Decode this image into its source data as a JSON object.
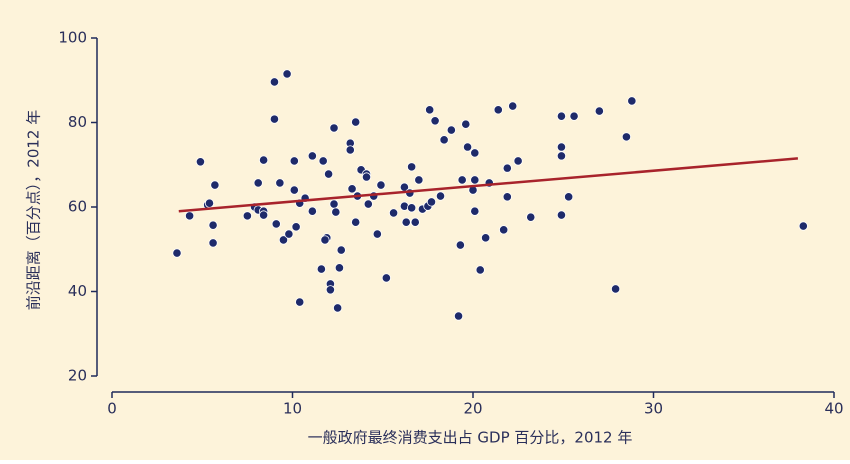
{
  "chart_data": {
    "type": "scatter",
    "x_label": "一般政府最终消费支出占 GDP 百分比，2012 年",
    "y_label": "前沿距离（百分点），2012 年",
    "xlim": [
      0,
      40
    ],
    "xticks": [
      0,
      10,
      20,
      30,
      40
    ],
    "ylim": [
      20,
      100
    ],
    "yticks": [
      20,
      40,
      60,
      80,
      100
    ],
    "background": "#fdf3da",
    "series": [
      {
        "color": "#1e2a6a",
        "x": [
          3.6,
          4.3,
          4.9,
          5.3,
          5.4,
          5.6,
          5.7,
          5.6,
          7.5,
          7.9,
          8.1,
          8.1,
          8.4,
          8.4,
          8.4,
          9.0,
          9.0,
          9.7,
          9.3,
          9.1,
          9.5,
          9.8,
          10.1,
          10.1,
          10.2,
          10.4,
          10.4,
          10.7,
          11.1,
          11.1,
          11.6,
          11.7,
          11.9,
          11.8,
          12.0,
          12.1,
          12.1,
          12.3,
          12.3,
          12.4,
          12.6,
          12.7,
          12.5,
          13.2,
          13.2,
          13.3,
          13.5,
          13.6,
          13.5,
          13.8,
          14.1,
          14.1,
          14.2,
          14.5,
          14.7,
          14.9,
          15.2,
          15.6,
          16.2,
          16.2,
          16.3,
          16.5,
          16.6,
          16.6,
          16.8,
          17.0,
          17.2,
          17.5,
          17.6,
          17.7,
          17.9,
          18.2,
          18.4,
          18.8,
          19.2,
          19.4,
          19.3,
          19.6,
          19.7,
          20.0,
          20.1,
          20.1,
          20.1,
          20.4,
          20.7,
          20.9,
          21.4,
          21.7,
          21.9,
          21.9,
          22.2,
          22.5,
          23.2,
          24.9,
          24.9,
          24.9,
          24.9,
          25.3,
          25.6,
          27.0,
          27.9,
          28.5,
          28.8,
          38.3
        ],
        "values": [
          49.1,
          57.9,
          70.7,
          60.5,
          60.9,
          55.7,
          65.2,
          51.5,
          57.9,
          60,
          65.7,
          59.3,
          59,
          58.1,
          71.1,
          89.6,
          80.8,
          91.5,
          65.7,
          56,
          52.2,
          53.6,
          70.9,
          64,
          55.3,
          60.9,
          37.5,
          62.1,
          59,
          72.1,
          45.3,
          70.9,
          52.7,
          52.2,
          67.8,
          41.8,
          40.4,
          78.7,
          60.7,
          58.8,
          45.6,
          49.8,
          36.1,
          75.1,
          73.5,
          64.3,
          80.1,
          62.6,
          56.4,
          68.8,
          67.8,
          67.1,
          60.7,
          62.6,
          53.6,
          65.2,
          43.2,
          58.6,
          64.7,
          60.2,
          56.4,
          63.3,
          69.5,
          59.8,
          56.4,
          66.4,
          59.5,
          60.2,
          83,
          61.2,
          80.4,
          62.6,
          75.9,
          78.2,
          34.2,
          66.4,
          51,
          79.6,
          74.2,
          64,
          59,
          72.8,
          66.4,
          45.1,
          52.7,
          65.7,
          83,
          54.6,
          62.4,
          69.2,
          83.9,
          70.9,
          57.6,
          72.1,
          58.1,
          81.5,
          74.2,
          62.4,
          81.5,
          82.7,
          40.6,
          76.6,
          85.1,
          55.5
        ]
      }
    ],
    "trend_line": {
      "color": "#a8232b",
      "x": [
        3.7,
        38
      ],
      "values": [
        59,
        71.5
      ]
    }
  }
}
